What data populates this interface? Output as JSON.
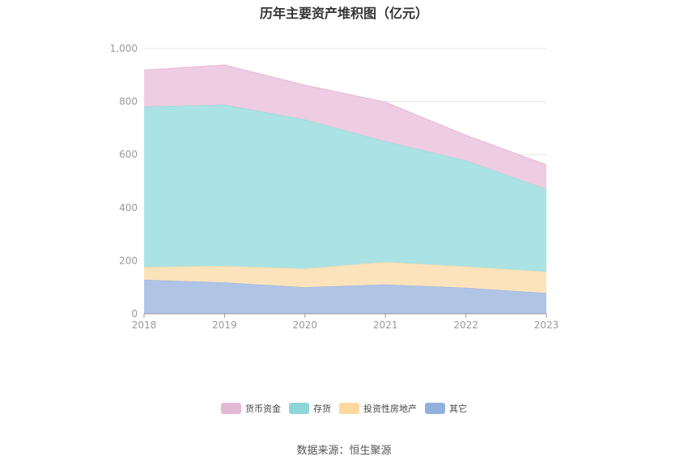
{
  "chart_data": {
    "type": "area",
    "stacked": true,
    "title": "历年主要资产堆积图（亿元）",
    "x": [
      "2018",
      "2019",
      "2020",
      "2021",
      "2022",
      "2023"
    ],
    "ylim": [
      0,
      1000
    ],
    "yticks": [
      "0",
      "200",
      "400",
      "600",
      "800",
      "1,000"
    ],
    "grid": true,
    "legend_position": "bottom",
    "series": [
      {
        "name": "其它",
        "color": "#92B0DD",
        "fill": "#B0C4E6",
        "values": [
          128,
          118,
          100,
          110,
          98,
          78
        ]
      },
      {
        "name": "投资性房地产",
        "color": "#FBD89E",
        "fill": "#FCE3BC",
        "values": [
          48,
          62,
          70,
          85,
          80,
          80
        ]
      },
      {
        "name": "存货",
        "color": "#8ED6D8",
        "fill": "#ABE2E3",
        "values": [
          605,
          608,
          562,
          455,
          400,
          312
        ]
      },
      {
        "name": "货币资金",
        "color": "#E6B8D8",
        "fill": "#EECCE3",
        "values": [
          138,
          150,
          130,
          148,
          95,
          92
        ]
      }
    ]
  },
  "legend": {
    "items": [
      {
        "label": "货币资金",
        "color": "#E6B8D8"
      },
      {
        "label": "存货",
        "color": "#8ED6D8"
      },
      {
        "label": "投资性房地产",
        "color": "#FBD89E"
      },
      {
        "label": "其它",
        "color": "#92B0DD"
      }
    ]
  },
  "footer": {
    "source": "数据来源：恒生聚源"
  }
}
